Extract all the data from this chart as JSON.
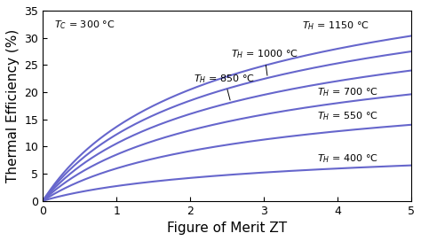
{
  "TC_C": 300,
  "TH_list_C": [
    400,
    550,
    700,
    850,
    1000,
    1150
  ],
  "ZT_max": 5.0,
  "xlim": [
    0,
    5
  ],
  "ylim": [
    0,
    35
  ],
  "xlabel": "Figure of Merit ZT",
  "ylabel": "Thermal Efficiency (%)",
  "line_color": "#6666cc",
  "background_color": "#ffffff",
  "label_fontsize": 11,
  "tick_fontsize": 9,
  "annotation_fontsize": 8,
  "line_width": 1.5
}
